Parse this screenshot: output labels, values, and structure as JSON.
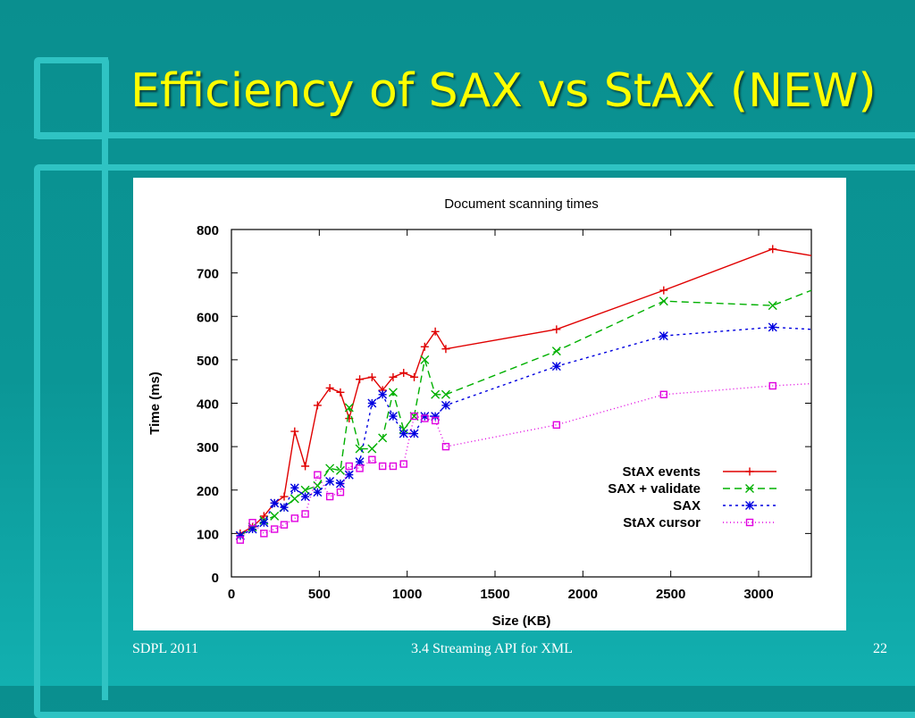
{
  "slide": {
    "title": "Efficiency of SAX vs StAX (NEW)",
    "footer_left": "SDPL 2011",
    "footer_center": "3.4 Streaming API for XML",
    "footer_right": "22"
  },
  "chart_data": {
    "type": "line",
    "title": "Document scanning times",
    "xlabel": "Size (KB)",
    "ylabel": "Time (ms)",
    "xlim": [
      0,
      3300
    ],
    "ylim": [
      0,
      800
    ],
    "xticks": [
      "0",
      "500",
      "1000",
      "1500",
      "2000",
      "2500",
      "3000"
    ],
    "yticks": [
      "0",
      "100",
      "200",
      "300",
      "400",
      "500",
      "600",
      "700",
      "800"
    ],
    "grid": false,
    "legend_position": "bottom-right",
    "series": [
      {
        "name": "StAX events",
        "color": "#e00000",
        "marker": "plus",
        "dash": "",
        "points": [
          [
            50,
            100
          ],
          [
            120,
            115
          ],
          [
            185,
            140
          ],
          [
            245,
            170
          ],
          [
            300,
            185
          ],
          [
            360,
            335
          ],
          [
            420,
            255
          ],
          [
            490,
            395
          ],
          [
            560,
            435
          ],
          [
            620,
            425
          ],
          [
            670,
            365
          ],
          [
            730,
            455
          ],
          [
            800,
            460
          ],
          [
            860,
            430
          ],
          [
            920,
            460
          ],
          [
            980,
            470
          ],
          [
            1040,
            460
          ],
          [
            1100,
            530
          ],
          [
            1160,
            565
          ],
          [
            1220,
            525
          ],
          [
            1850,
            570
          ],
          [
            2460,
            660
          ],
          [
            3080,
            755
          ],
          [
            3300,
            740
          ]
        ]
      },
      {
        "name": "SAX + validate",
        "color": "#00b000",
        "marker": "x",
        "dash": "8,5",
        "points": [
          [
            50,
            95
          ],
          [
            120,
            115
          ],
          [
            185,
            130
          ],
          [
            245,
            140
          ],
          [
            300,
            160
          ],
          [
            360,
            180
          ],
          [
            420,
            200
          ],
          [
            490,
            210
          ],
          [
            560,
            250
          ],
          [
            620,
            245
          ],
          [
            670,
            390
          ],
          [
            730,
            295
          ],
          [
            800,
            295
          ],
          [
            860,
            320
          ],
          [
            920,
            425
          ],
          [
            980,
            340
          ],
          [
            1040,
            370
          ],
          [
            1100,
            500
          ],
          [
            1160,
            420
          ],
          [
            1220,
            420
          ],
          [
            1850,
            520
          ],
          [
            2460,
            635
          ],
          [
            3080,
            625
          ],
          [
            3300,
            660
          ]
        ]
      },
      {
        "name": "SAX",
        "color": "#0000e0",
        "marker": "star",
        "dash": "3,4",
        "points": [
          [
            50,
            95
          ],
          [
            120,
            110
          ],
          [
            185,
            125
          ],
          [
            245,
            170
          ],
          [
            300,
            160
          ],
          [
            360,
            205
          ],
          [
            420,
            185
          ],
          [
            490,
            195
          ],
          [
            560,
            220
          ],
          [
            620,
            215
          ],
          [
            670,
            235
          ],
          [
            730,
            265
          ],
          [
            800,
            400
          ],
          [
            860,
            420
          ],
          [
            920,
            370
          ],
          [
            980,
            330
          ],
          [
            1040,
            330
          ],
          [
            1100,
            370
          ],
          [
            1160,
            370
          ],
          [
            1220,
            395
          ],
          [
            1850,
            485
          ],
          [
            2460,
            555
          ],
          [
            3080,
            575
          ],
          [
            3300,
            570
          ]
        ]
      },
      {
        "name": "StAX cursor",
        "color": "#e000e0",
        "marker": "square",
        "dash": "1,3",
        "points": [
          [
            50,
            85
          ],
          [
            120,
            125
          ],
          [
            185,
            100
          ],
          [
            245,
            110
          ],
          [
            300,
            120
          ],
          [
            360,
            135
          ],
          [
            420,
            145
          ],
          [
            490,
            235
          ],
          [
            560,
            185
          ],
          [
            620,
            195
          ],
          [
            670,
            255
          ],
          [
            730,
            250
          ],
          [
            800,
            270
          ],
          [
            860,
            255
          ],
          [
            920,
            255
          ],
          [
            980,
            260
          ],
          [
            1040,
            370
          ],
          [
            1100,
            365
          ],
          [
            1160,
            360
          ],
          [
            1220,
            300
          ],
          [
            1850,
            350
          ],
          [
            2460,
            420
          ],
          [
            3080,
            440
          ],
          [
            3300,
            445
          ]
        ]
      }
    ]
  }
}
